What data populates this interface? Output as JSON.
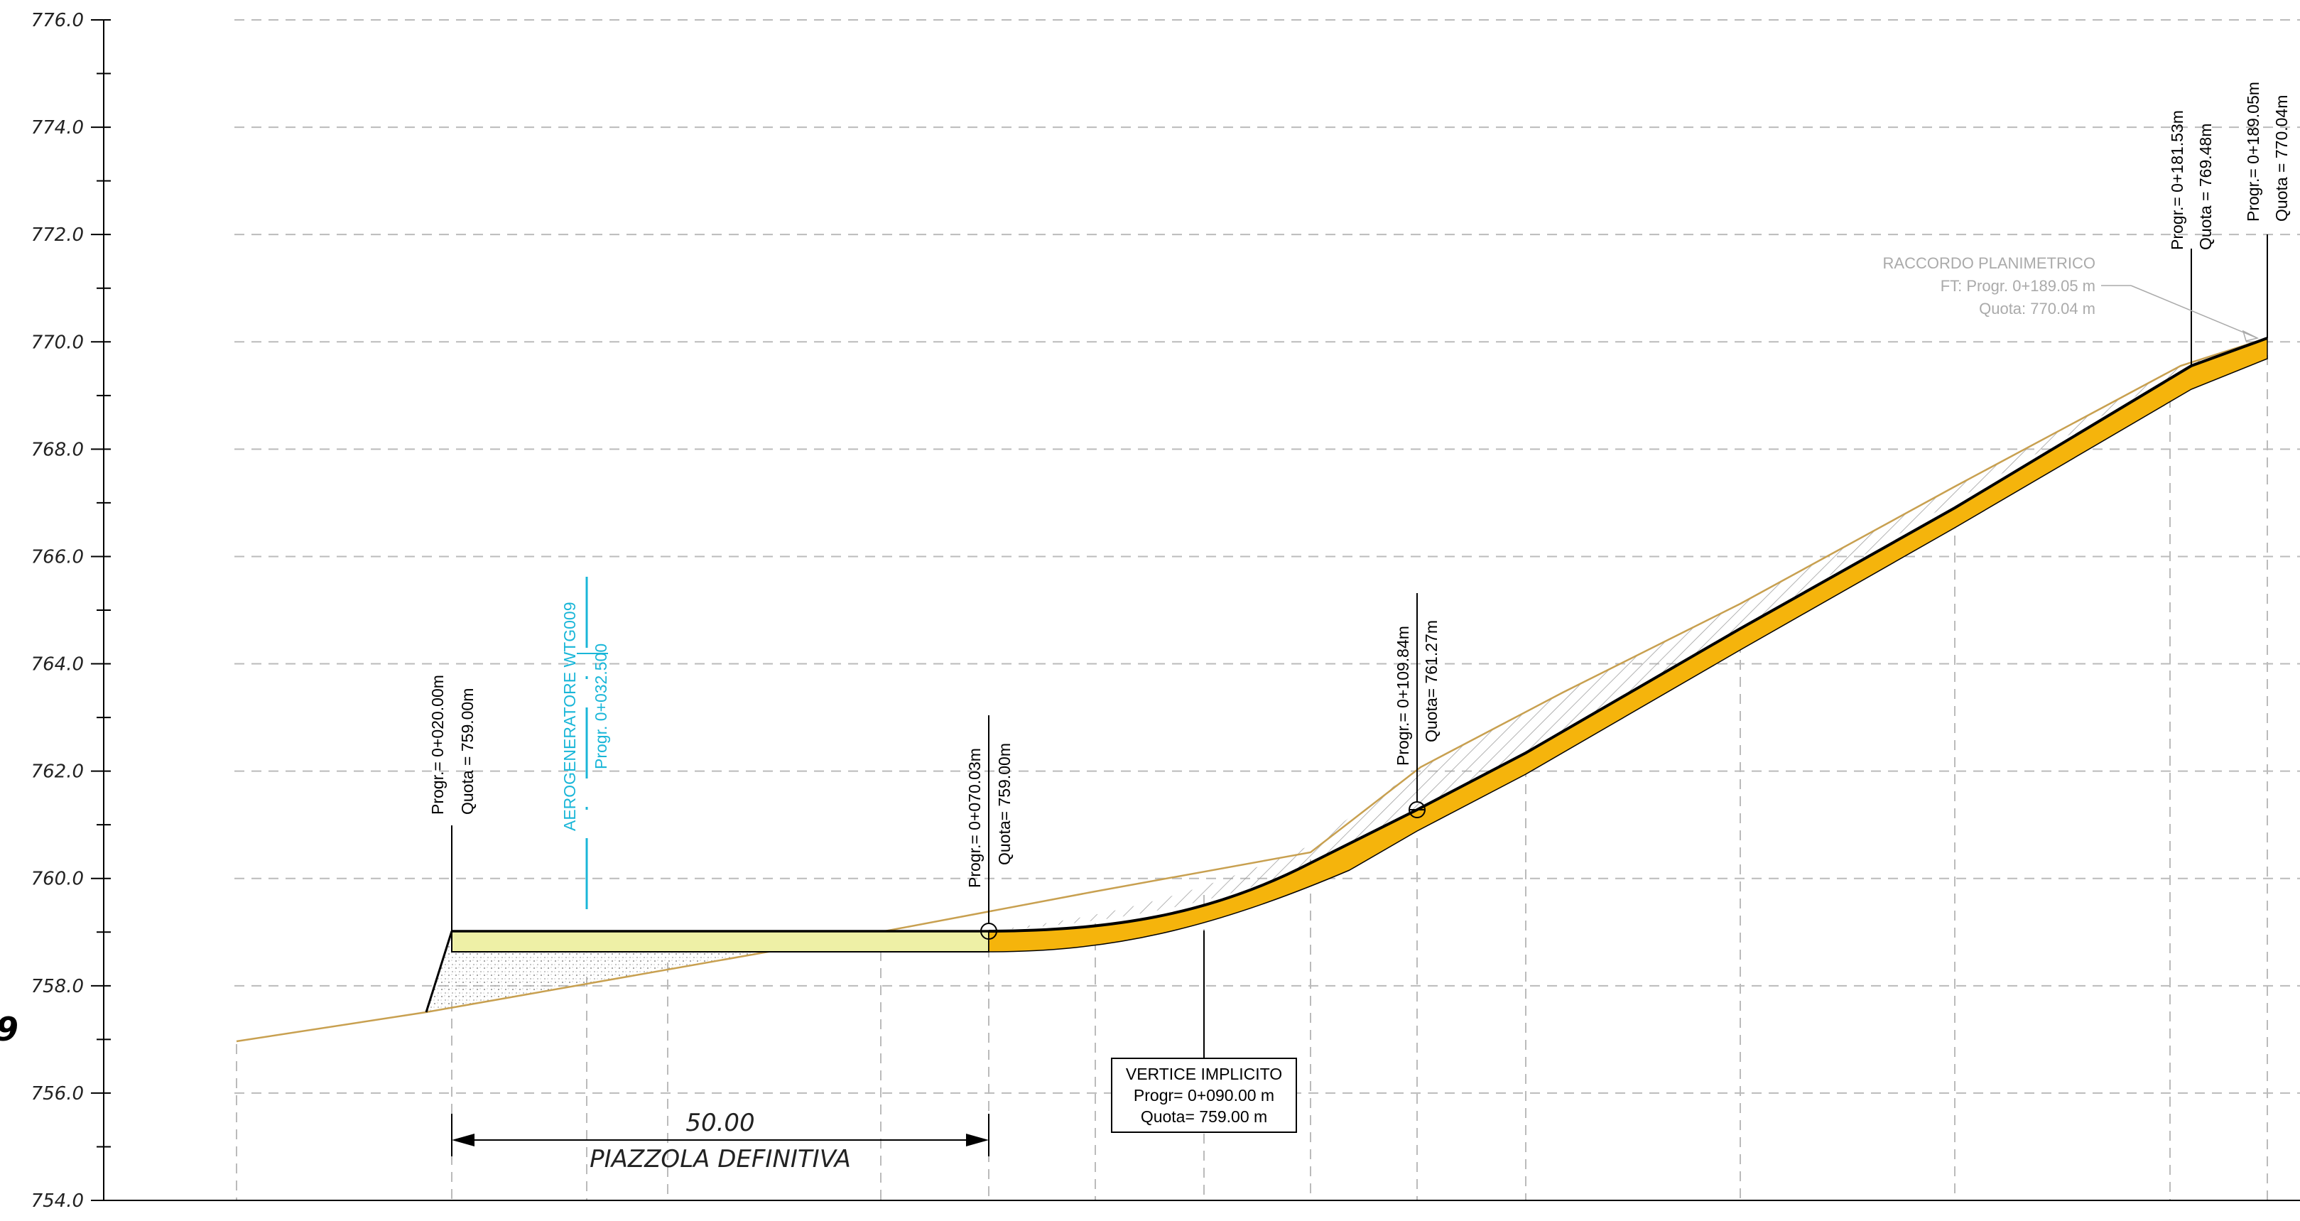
{
  "y_axis": {
    "ticks": [
      "776.0",
      "774.0",
      "772.0",
      "770.0",
      "768.0",
      "766.0",
      "764.0",
      "762.0",
      "760.0",
      "758.0",
      "756.0",
      "754.0"
    ]
  },
  "edge_label": "9",
  "colors": {
    "road_fill": "#f5b40c",
    "pad_fill": "#eef0a6",
    "ground_line": "#c8a050",
    "cyan": "#19b6d8",
    "grid": "#bbbbbb",
    "grey_text": "#aaaaaa"
  },
  "annotations": {
    "start": {
      "line1": "Progr.= 0+020.00m",
      "line2": "Quota = 759.00m"
    },
    "turbine": {
      "line1": "AEROGENERATORE WTG009",
      "line2": "Progr. 0+032.500"
    },
    "pad_end": {
      "line1": "Progr.= 0+070.03m",
      "line2": "Quota= 759.00m"
    },
    "mid": {
      "line1": "Progr.= 0+109.84m",
      "line2": "Quota= 761.27m"
    },
    "near_end": {
      "line1": "Progr.= 0+181.53m",
      "line2": "Quota = 769.48m"
    },
    "end": {
      "line1": "Progr.= 0+189.05m",
      "line2": "Quota = 770.04m"
    },
    "raccordo": {
      "line1": "RACCORDO PLANIMETRICO",
      "line2": "FT: Progr. 0+189.05 m",
      "line3": "Quota: 770.04 m"
    },
    "vertice": {
      "line1": "VERTICE IMPLICITO",
      "line2": "Progr= 0+090.00 m",
      "line3": "Quota= 759.00 m"
    }
  },
  "dimension": {
    "value": "50.00",
    "label": "PIAZZOLA DEFINITIVA"
  }
}
